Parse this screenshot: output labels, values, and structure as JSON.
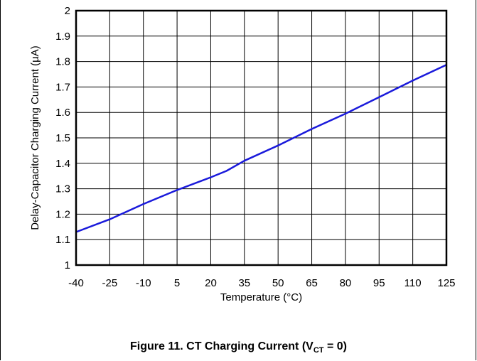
{
  "chart_data": {
    "type": "line",
    "title": "",
    "xlabel": "Temperature (°C)",
    "ylabel": "Delay-Capacitor Charging Current (µA)",
    "xlim": [
      -40,
      125
    ],
    "ylim": [
      1,
      2
    ],
    "x_ticks": [
      "-40",
      "-25",
      "-10",
      "5",
      "20",
      "35",
      "50",
      "65",
      "80",
      "95",
      "110",
      "125"
    ],
    "y_ticks": [
      "1",
      "1.1",
      "1.2",
      "1.3",
      "1.4",
      "1.5",
      "1.6",
      "1.7",
      "1.8",
      "1.9",
      "2"
    ],
    "grid": true,
    "series": [
      {
        "color": "#1a1adb",
        "x": [
          -40,
          -25,
          -10,
          5,
          20,
          27,
          35,
          50,
          65,
          80,
          95,
          110,
          125
        ],
        "y": [
          1.13,
          1.18,
          1.24,
          1.295,
          1.345,
          1.37,
          1.41,
          1.47,
          1.535,
          1.595,
          1.66,
          1.725,
          1.787
        ]
      }
    ]
  },
  "caption": {
    "prefix": "Figure 11. CT Charging Current (V",
    "subscript": "CT",
    "suffix": " = 0)"
  }
}
